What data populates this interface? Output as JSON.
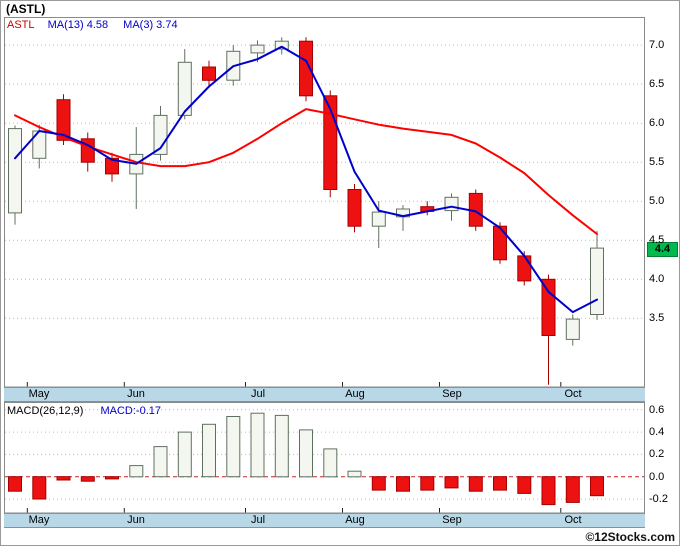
{
  "title": "(ASTL)",
  "watermark": "©12Stocks.com",
  "price_tag": "4.4",
  "main_legend": {
    "symbol": "ASTL",
    "ma13": "MA(13) 4.58",
    "ma3": "MA(3) 3.74"
  },
  "macd_legend": {
    "label": "MACD(26,12,9)",
    "value": "MACD:-0.17"
  },
  "colors": {
    "up_fill": "#f4f7f0",
    "up_stroke": "#607060",
    "down_fill": "#ee1111",
    "down_stroke": "#a50000",
    "ma13": "#ff0000",
    "ma3": "#0000cc",
    "grid": "#bbbbbb",
    "zero_line": "#cc2222",
    "band_bg": "#b8d8e8",
    "tag_bg": "#00b94e"
  },
  "chart_data": [
    {
      "type": "candlestick",
      "title": "ASTL weekly price with moving averages",
      "x_start": 14,
      "x_step": 24.25,
      "candle_width": 13,
      "y_ticks": [
        7.0,
        6.5,
        6.0,
        5.5,
        5.0,
        4.5,
        4.0,
        3.5
      ],
      "ylim": [
        2.62,
        7.36
      ],
      "last_price": 4.4,
      "months": [
        {
          "label": "May",
          "tick_index": 1
        },
        {
          "label": "Jun",
          "tick_index": 5
        },
        {
          "label": "Jul",
          "tick_index": 10
        },
        {
          "label": "Aug",
          "tick_index": 14
        },
        {
          "label": "Sep",
          "tick_index": 18
        },
        {
          "label": "Oct",
          "tick_index": 23
        }
      ],
      "ohlc": [
        {
          "o": 4.85,
          "h": 5.97,
          "l": 4.7,
          "c": 5.93
        },
        {
          "o": 5.55,
          "h": 5.98,
          "l": 5.42,
          "c": 5.9
        },
        {
          "o": 6.3,
          "h": 6.37,
          "l": 5.72,
          "c": 5.78
        },
        {
          "o": 5.8,
          "h": 5.88,
          "l": 5.38,
          "c": 5.5
        },
        {
          "o": 5.55,
          "h": 5.62,
          "l": 5.25,
          "c": 5.35
        },
        {
          "o": 5.35,
          "h": 5.95,
          "l": 4.9,
          "c": 5.6
        },
        {
          "o": 5.6,
          "h": 6.22,
          "l": 5.52,
          "c": 6.1
        },
        {
          "o": 6.1,
          "h": 6.95,
          "l": 6.05,
          "c": 6.78
        },
        {
          "o": 6.72,
          "h": 6.8,
          "l": 6.45,
          "c": 6.55
        },
        {
          "o": 6.55,
          "h": 7.0,
          "l": 6.48,
          "c": 6.92
        },
        {
          "o": 6.9,
          "h": 7.06,
          "l": 6.78,
          "c": 7.0
        },
        {
          "o": 6.95,
          "h": 7.1,
          "l": 6.88,
          "c": 7.05
        },
        {
          "o": 7.05,
          "h": 7.1,
          "l": 6.28,
          "c": 6.35
        },
        {
          "o": 6.35,
          "h": 6.42,
          "l": 5.05,
          "c": 5.15
        },
        {
          "o": 5.15,
          "h": 5.22,
          "l": 4.6,
          "c": 4.68
        },
        {
          "o": 4.68,
          "h": 5.0,
          "l": 4.4,
          "c": 4.86
        },
        {
          "o": 4.8,
          "h": 4.95,
          "l": 4.62,
          "c": 4.9
        },
        {
          "o": 4.93,
          "h": 5.0,
          "l": 4.82,
          "c": 4.87
        },
        {
          "o": 4.88,
          "h": 5.1,
          "l": 4.75,
          "c": 5.05
        },
        {
          "o": 5.1,
          "h": 5.15,
          "l": 4.62,
          "c": 4.68
        },
        {
          "o": 4.68,
          "h": 4.73,
          "l": 4.2,
          "c": 4.25
        },
        {
          "o": 4.3,
          "h": 4.36,
          "l": 3.92,
          "c": 3.98
        },
        {
          "o": 4.0,
          "h": 4.06,
          "l": 2.65,
          "c": 3.28
        },
        {
          "o": 3.23,
          "h": 3.55,
          "l": 3.15,
          "c": 3.49
        },
        {
          "o": 3.55,
          "h": 4.62,
          "l": 3.48,
          "c": 4.4
        }
      ],
      "series": [
        {
          "name": "MA(13)",
          "current": 4.58,
          "color": "#ff0000",
          "values": [
            6.1,
            5.95,
            5.82,
            5.7,
            5.6,
            5.5,
            5.45,
            5.45,
            5.5,
            5.62,
            5.8,
            6.0,
            6.18,
            6.12,
            6.05,
            5.98,
            5.93,
            5.89,
            5.85,
            5.74,
            5.56,
            5.36,
            5.08,
            4.82,
            4.58
          ]
        },
        {
          "name": "MA(3)",
          "current": 3.74,
          "color": "#0000cc",
          "values": [
            5.55,
            5.9,
            5.85,
            5.72,
            5.53,
            5.48,
            5.68,
            6.15,
            6.47,
            6.73,
            6.82,
            6.98,
            6.8,
            6.18,
            5.38,
            4.88,
            4.81,
            4.87,
            4.93,
            4.87,
            4.66,
            4.3,
            3.84,
            3.58,
            3.74
          ]
        }
      ]
    },
    {
      "type": "bar",
      "title": "MACD(26,12,9)",
      "y_ticks": [
        0.6,
        0.4,
        0.2,
        0.0,
        -0.2
      ],
      "ylim": [
        -0.325,
        0.67
      ],
      "last_value": -0.17,
      "values": [
        -0.13,
        -0.2,
        -0.03,
        -0.04,
        -0.02,
        0.1,
        0.27,
        0.4,
        0.47,
        0.54,
        0.57,
        0.55,
        0.42,
        0.25,
        0.05,
        -0.12,
        -0.13,
        -0.12,
        -0.1,
        -0.13,
        -0.12,
        -0.15,
        -0.25,
        -0.23,
        -0.17
      ]
    }
  ]
}
